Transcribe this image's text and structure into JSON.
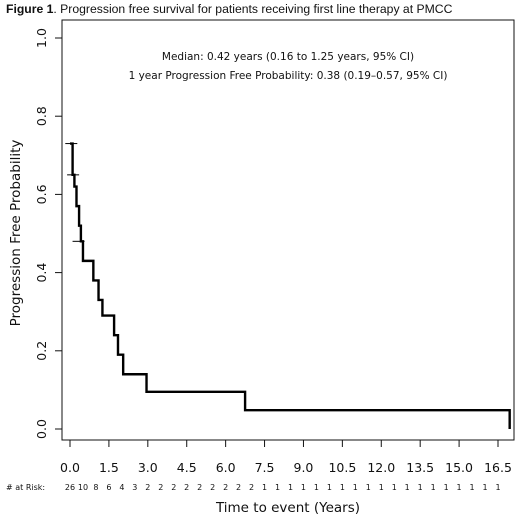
{
  "caption": {
    "label": "Figure 1",
    "text": ". Progression free survival for patients receiving first line therapy at PMCC"
  },
  "annotations": {
    "median": "Median: 0.42 years (0.16 to 1.25 years, 95% CI)",
    "one_year": "1 year Progression Free Probability: 0.38 (0.19–0.57, 95% CI)"
  },
  "risk": {
    "label": "# at Risk:",
    "times": [
      0,
      0.5,
      1,
      1.5,
      2,
      2.5,
      3,
      3.5,
      4,
      4.5,
      5,
      5.5,
      6,
      6.5,
      7,
      7.5,
      8,
      8.5,
      9,
      9.5,
      10,
      10.5,
      11,
      11.5,
      12,
      12.5,
      13,
      13.5,
      14,
      14.5,
      15,
      15.5,
      16,
      16.5
    ],
    "counts": [
      "26",
      "10",
      "8",
      "6",
      "4",
      "3",
      "2",
      "2",
      "2",
      "2",
      "2",
      "2",
      "2",
      "2",
      "2",
      "1",
      "1",
      "1",
      "1",
      "1",
      "1",
      "1",
      "1",
      "1",
      "1",
      "1",
      "1",
      "1",
      "1",
      "1",
      "1",
      "1",
      "1",
      "1"
    ]
  },
  "chart_data": {
    "type": "line",
    "subtype": "kaplan-meier step",
    "xlabel": "Time to event (Years)",
    "ylabel": "Progression Free Probability",
    "xlim": [
      0,
      17.2
    ],
    "ylim": [
      0,
      1.0
    ],
    "xticks": [
      0,
      1.5,
      3,
      4.5,
      6,
      7.5,
      9,
      10.5,
      12,
      13.5,
      15,
      16.5
    ],
    "xtick_labels": [
      "0.0",
      "1.5",
      "3.0",
      "4.5",
      "6.0",
      "7.5",
      "9.0",
      "10.5",
      "12.0",
      "13.5",
      "15.0",
      "16.5"
    ],
    "yticks": [
      0,
      0.2,
      0.4,
      0.6,
      0.8,
      1.0
    ],
    "ytick_labels": [
      "0.0",
      "0.2",
      "0.4",
      "0.6",
      "0.8",
      "1.0"
    ],
    "grid": false,
    "series": [
      {
        "color": "#000000",
        "steps": [
          [
            0,
            0.73
          ],
          [
            0.1,
            0.65
          ],
          [
            0.17,
            0.62
          ],
          [
            0.25,
            0.57
          ],
          [
            0.35,
            0.52
          ],
          [
            0.42,
            0.48
          ],
          [
            0.5,
            0.43
          ],
          [
            0.9,
            0.38
          ],
          [
            1.1,
            0.33
          ],
          [
            1.25,
            0.29
          ],
          [
            1.7,
            0.24
          ],
          [
            1.85,
            0.19
          ],
          [
            2.05,
            0.14
          ],
          [
            2.95,
            0.095
          ],
          [
            6.75,
            0.048
          ],
          [
            16.95,
            0.0
          ]
        ],
        "end_x": 16.95,
        "censor": [
          [
            0.05,
            0.73
          ],
          [
            0.12,
            0.65
          ],
          [
            0.33,
            0.48
          ]
        ]
      }
    ]
  },
  "colors": {
    "line": "#000000",
    "axis": "#111111",
    "background": "#ffffff"
  }
}
